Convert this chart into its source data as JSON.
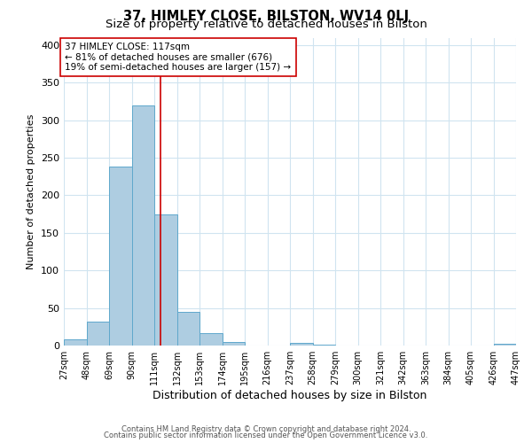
{
  "title": "37, HIMLEY CLOSE, BILSTON, WV14 0LJ",
  "subtitle": "Size of property relative to detached houses in Bilston",
  "xlabel": "Distribution of detached houses by size in Bilston",
  "ylabel": "Number of detached properties",
  "bar_edges": [
    27,
    48,
    69,
    90,
    111,
    132,
    153,
    174,
    195,
    216,
    237,
    258,
    279,
    300,
    321,
    342,
    363,
    384,
    405,
    426,
    447
  ],
  "bar_heights": [
    8,
    32,
    238,
    320,
    175,
    45,
    17,
    5,
    0,
    0,
    3,
    1,
    0,
    0,
    0,
    0,
    0,
    0,
    0,
    2
  ],
  "bar_color": "#aecde1",
  "bar_edgecolor": "#5fa8cc",
  "bar_linewidth": 0.7,
  "vline_x": 117,
  "vline_color": "#cc0000",
  "vline_linewidth": 1.2,
  "ylim": [
    0,
    410
  ],
  "annotation_text": "37 HIMLEY CLOSE: 117sqm\n← 81% of detached houses are smaller (676)\n19% of semi-detached houses are larger (157) →",
  "annotation_box_edgecolor": "#cc0000",
  "annotation_box_facecolor": "#ffffff",
  "annotation_fontsize": 7.5,
  "tick_labels": [
    "27sqm",
    "48sqm",
    "69sqm",
    "90sqm",
    "111sqm",
    "132sqm",
    "153sqm",
    "174sqm",
    "195sqm",
    "216sqm",
    "237sqm",
    "258sqm",
    "279sqm",
    "300sqm",
    "321sqm",
    "342sqm",
    "363sqm",
    "384sqm",
    "405sqm",
    "426sqm",
    "447sqm"
  ],
  "footer_text1": "Contains HM Land Registry data © Crown copyright and database right 2024.",
  "footer_text2": "Contains public sector information licensed under the Open Government Licence v3.0.",
  "background_color": "#ffffff",
  "grid_color": "#d0e4f0",
  "title_fontsize": 10.5,
  "subtitle_fontsize": 9.5,
  "xlabel_fontsize": 9,
  "ylabel_fontsize": 8,
  "tick_fontsize": 7,
  "ytick_fontsize": 8,
  "footer_fontsize": 6,
  "yticks": [
    0,
    50,
    100,
    150,
    200,
    250,
    300,
    350,
    400
  ]
}
